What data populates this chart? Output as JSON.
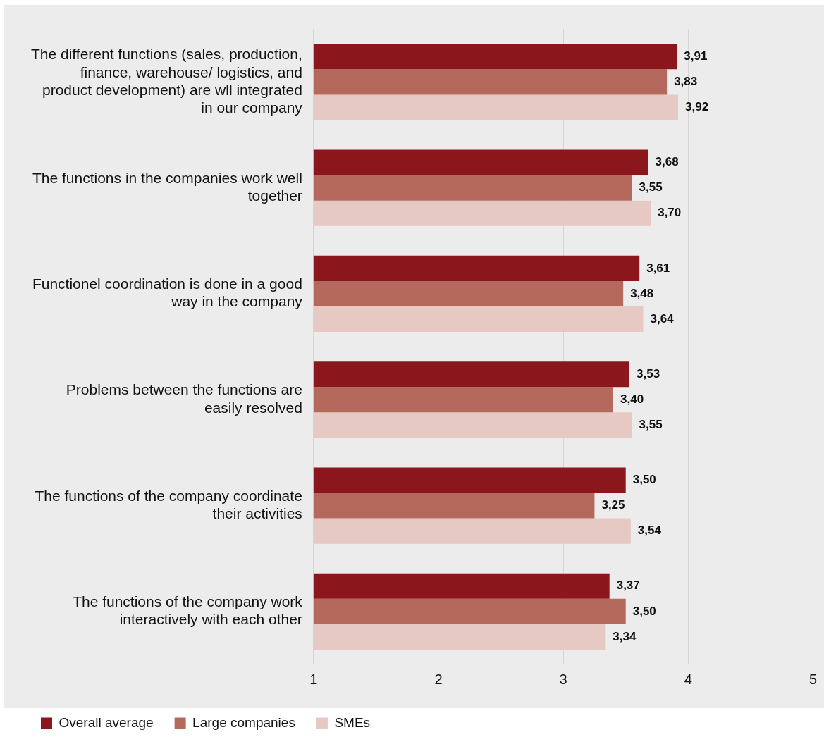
{
  "chart_data": {
    "type": "bar",
    "orientation": "horizontal",
    "categories": [
      "The different functions (sales, production, finance, warehouse/ logistics, and product development) are wll integrated in our company",
      "The functions in the companies work well together",
      "Functionel coordination is done in a good way in the company",
      "Problems between the functions are easily resolved",
      "The functions of the company coordinate their activities",
      "The functions of the company work interactively with each other"
    ],
    "series": [
      {
        "name": "Overall average",
        "color": "#8b161c",
        "values": [
          3.91,
          3.68,
          3.61,
          3.53,
          3.5,
          3.37
        ],
        "value_labels": [
          "3,91",
          "3,68",
          "3,61",
          "3,53",
          "3,50",
          "3,37"
        ]
      },
      {
        "name": "Large companies",
        "color": "#b5695c",
        "values": [
          3.83,
          3.55,
          3.48,
          3.4,
          3.25,
          3.5
        ],
        "value_labels": [
          "3,83",
          "3,55",
          "3,48",
          "3,40",
          "3,25",
          "3,50"
        ]
      },
      {
        "name": "SMEs",
        "color": "#e6c9c3",
        "values": [
          3.92,
          3.7,
          3.64,
          3.55,
          3.54,
          3.34
        ],
        "value_labels": [
          "3,92",
          "3,70",
          "3,64",
          "3,55",
          "3,54",
          "3,34"
        ]
      }
    ],
    "xlim": [
      1,
      5
    ],
    "xticks": [
      1,
      2,
      3,
      4,
      5
    ],
    "grid": "x",
    "legend": "bottom left"
  }
}
